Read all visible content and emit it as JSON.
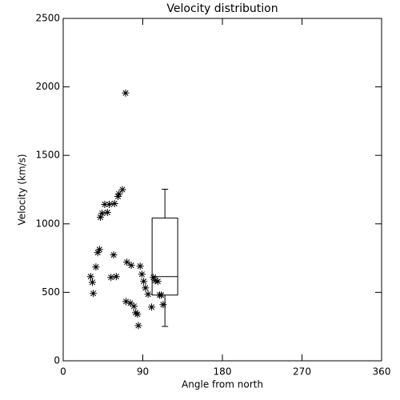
{
  "chart_data": {
    "type": "scatter",
    "title": "Velocity distribution",
    "x_label": "Angle from north",
    "y_label": "Velocity (km/s)",
    "x": [
      70.5,
      67,
      63,
      62,
      58,
      47,
      52,
      50,
      44,
      42,
      41,
      39,
      37,
      31,
      33,
      34,
      57,
      60,
      54,
      72,
      77,
      87,
      89,
      91,
      93,
      96,
      102,
      104,
      107,
      109,
      111,
      113,
      100,
      71,
      76,
      80,
      82,
      84,
      85
    ],
    "y": [
      1955,
      1250,
      1218,
      1200,
      1148,
      1142,
      1142,
      1083,
      1077,
      1048,
      813,
      790,
      685,
      615,
      573,
      492,
      773,
      615,
      609,
      720,
      697,
      691,
      632,
      580,
      532,
      486,
      609,
      585,
      580,
      480,
      480,
      410,
      392,
      433,
      421,
      398,
      351,
      340,
      257
    ],
    "color": "#000000",
    "box": {
      "x": 115,
      "min": 251,
      "q1": 480,
      "median": 615,
      "q3": 1042,
      "max": 1253
    },
    "xlim": [
      0,
      360
    ],
    "xticks": [
      0,
      90,
      180,
      270,
      360
    ],
    "ylim": [
      0,
      2500
    ],
    "yticks": [
      0,
      500,
      1000,
      1500,
      2000,
      2500
    ]
  }
}
